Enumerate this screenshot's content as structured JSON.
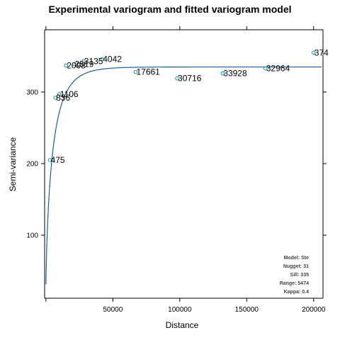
{
  "chart_data": {
    "type": "scatter",
    "title": "Experimental variogram and fitted variogram model",
    "xlabel": "Distance",
    "ylabel": "Semi-variance",
    "xlim": [
      -1000,
      207000
    ],
    "ylim": [
      12,
      387
    ],
    "x_ticks": [
      50000,
      100000,
      150000,
      200000
    ],
    "x_tick_labels": [
      "50000",
      "100000",
      "150000",
      "200000"
    ],
    "y_ticks": [
      100,
      200,
      300
    ],
    "y_tick_labels": [
      "100",
      "200",
      "300"
    ],
    "points": [
      {
        "x": 3000,
        "y": 205,
        "label": "475"
      },
      {
        "x": 7000,
        "y": 292,
        "label": "836"
      },
      {
        "x": 10000,
        "y": 297,
        "label": "1106"
      },
      {
        "x": 15000,
        "y": 337,
        "label": "2098"
      },
      {
        "x": 21000,
        "y": 339,
        "label": "2519"
      },
      {
        "x": 28000,
        "y": 343,
        "label": "3135"
      },
      {
        "x": 42000,
        "y": 346,
        "label": "4042"
      },
      {
        "x": 67000,
        "y": 328,
        "label": "17661"
      },
      {
        "x": 98000,
        "y": 319,
        "label": "30716"
      },
      {
        "x": 132000,
        "y": 326,
        "label": "33928"
      },
      {
        "x": 164000,
        "y": 333,
        "label": "32964"
      },
      {
        "x": 200000,
        "y": 355,
        "label": "374"
      }
    ],
    "model": {
      "name": "Ste",
      "nugget": 31,
      "sill": 335,
      "range": 5474,
      "kappa": 0.4
    },
    "legend": {
      "position": "bottom-right",
      "lines": [
        "Model: Ste",
        "Nugget: 31",
        "Sill: 335",
        "Range: 5474",
        "Kappa: 0.4"
      ]
    },
    "grid": false,
    "colors": {
      "point": "#0a9aaa",
      "model_line": "#1a5f9a"
    }
  }
}
